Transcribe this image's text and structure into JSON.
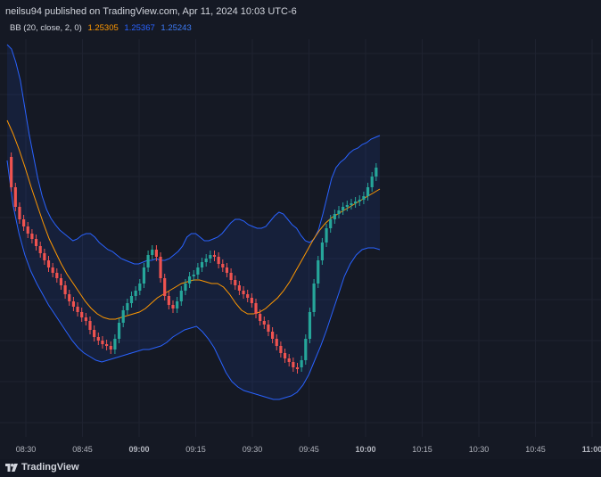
{
  "header": {
    "published": "neilsu94 published on TradingView.com, Apr 11, 2024 10:03 UTC-6"
  },
  "legend": {
    "name": "BB (20, close, 2, 0)",
    "basis": "1.25305",
    "upper": "1.25367",
    "lower": "1.25243"
  },
  "footer": {
    "brand": "TradingView"
  },
  "colors": {
    "background": "#151924",
    "grid": "#1e2230",
    "up": "#26a69a",
    "down": "#ef5350",
    "basis": "#ff9800",
    "band": "#2962ff",
    "fill": "rgba(41,98,255,0.10)"
  },
  "chart_data": {
    "type": "candlestick",
    "overlay": "Bollinger Bands (20, close, 2, 0)",
    "x_tick_labels": [
      "08:30",
      "08:45",
      "09:00",
      "09:15",
      "09:30",
      "09:45",
      "10:00",
      "10:15",
      "10:30",
      "10:45",
      "11:00"
    ],
    "bold_ticks": [
      "09:00",
      "10:00",
      "11:00"
    ],
    "candles": [
      [
        0,
        0,
        0,
        0,
        0
      ],
      [
        0,
        0,
        0,
        0,
        0
      ]
    ],
    "close": [
      176,
      210,
      232,
      246,
      254,
      262,
      268,
      276,
      284,
      292,
      300,
      306,
      312,
      320,
      330,
      338,
      344,
      350,
      356,
      360,
      370,
      378,
      382,
      386,
      388,
      392,
      380,
      362,
      348,
      340,
      332,
      326,
      318,
      300,
      286,
      280,
      288,
      312,
      332,
      342,
      346,
      338,
      326,
      318,
      310,
      308,
      300,
      294,
      290,
      286,
      288,
      296,
      300,
      306,
      314,
      320,
      326,
      330,
      334,
      340,
      352,
      360,
      364,
      372,
      380,
      388,
      396,
      402,
      406,
      412,
      412,
      404,
      380,
      350,
      318,
      292,
      272,
      256,
      246,
      240,
      236,
      232,
      230,
      228,
      226,
      224,
      220,
      210,
      198,
      188,
      180,
      172,
      168,
      164,
      162,
      160
    ]
  }
}
